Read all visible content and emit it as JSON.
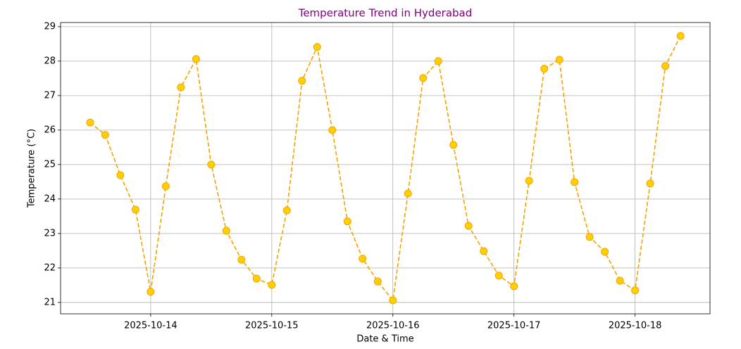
{
  "chart_data": {
    "type": "line",
    "title": "Temperature Trend in Hyderabad",
    "title_color": "#800080",
    "xlabel": "Date & Time",
    "ylabel": "Temperature (°C)",
    "x": [
      "2025-10-13T12:00",
      "2025-10-13T15:00",
      "2025-10-13T18:00",
      "2025-10-13T21:00",
      "2025-10-14T00:00",
      "2025-10-14T03:00",
      "2025-10-14T06:00",
      "2025-10-14T09:00",
      "2025-10-14T12:00",
      "2025-10-14T15:00",
      "2025-10-14T18:00",
      "2025-10-14T21:00",
      "2025-10-15T00:00",
      "2025-10-15T03:00",
      "2025-10-15T06:00",
      "2025-10-15T09:00",
      "2025-10-15T12:00",
      "2025-10-15T15:00",
      "2025-10-15T18:00",
      "2025-10-15T21:00",
      "2025-10-16T00:00",
      "2025-10-16T03:00",
      "2025-10-16T06:00",
      "2025-10-16T09:00",
      "2025-10-16T12:00",
      "2025-10-16T15:00",
      "2025-10-16T18:00",
      "2025-10-16T21:00",
      "2025-10-17T00:00",
      "2025-10-17T03:00",
      "2025-10-17T06:00",
      "2025-10-17T09:00",
      "2025-10-17T12:00",
      "2025-10-17T15:00",
      "2025-10-17T18:00",
      "2025-10-17T21:00",
      "2025-10-18T00:00",
      "2025-10-18T03:00",
      "2025-10-18T06:00",
      "2025-10-18T09:00"
    ],
    "series": [
      {
        "color": "#f5a300",
        "marker_color": "#ffd000",
        "values": [
          26.22,
          25.86,
          24.69,
          23.69,
          21.31,
          24.37,
          27.24,
          28.06,
          25.0,
          23.08,
          22.24,
          21.69,
          21.51,
          23.67,
          27.43,
          28.41,
          26.0,
          23.35,
          22.27,
          21.61,
          21.06,
          24.16,
          27.51,
          28.0,
          25.57,
          23.22,
          22.49,
          21.78,
          21.47,
          24.53,
          27.78,
          28.04,
          24.49,
          22.9,
          22.47,
          21.63,
          21.35,
          24.45,
          27.86,
          28.73
        ]
      }
    ],
    "xlim": [
      "2025-10-13T06:09",
      "2025-10-18T14:51"
    ],
    "xticks": [
      "2025-10-14",
      "2025-10-15",
      "2025-10-16",
      "2025-10-17",
      "2025-10-18"
    ],
    "ylim": [
      20.67,
      29.12
    ],
    "yticks": [
      21,
      22,
      23,
      24,
      25,
      26,
      27,
      28,
      29
    ],
    "grid": true
  }
}
